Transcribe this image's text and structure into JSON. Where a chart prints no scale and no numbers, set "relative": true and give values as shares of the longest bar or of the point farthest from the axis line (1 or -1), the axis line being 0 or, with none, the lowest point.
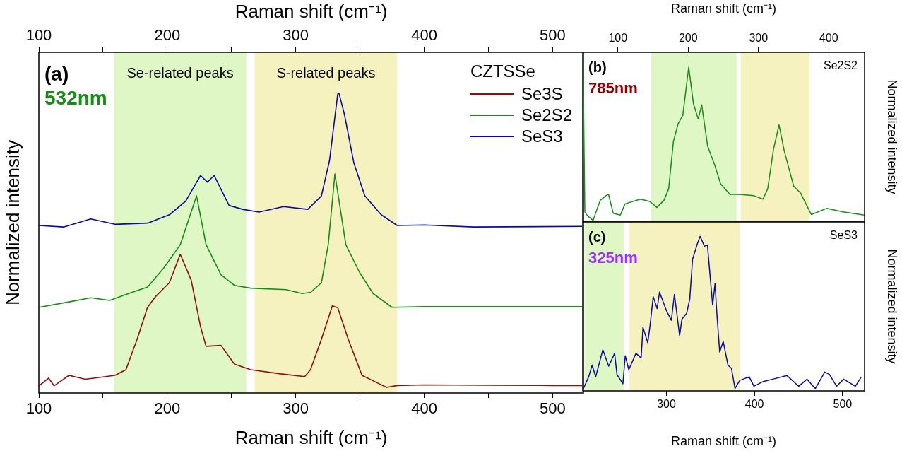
{
  "chart_data": [
    {
      "type": "line",
      "relative": true,
      "xlabel": "Raman shift (cm⁻¹)",
      "x2label": "Raman shift (cm⁻¹)",
      "ylabel": "Normalized intensity",
      "xlim": [
        100,
        524
      ],
      "xticks": [
        100,
        {
          "value": 150,
          "label": null
        },
        200,
        {
          "value": 250,
          "label": null
        },
        300,
        {
          "value": 350,
          "label": null
        },
        400,
        {
          "value": 450,
          "label": null
        },
        500
      ],
      "x2lim": [
        100,
        524
      ],
      "x2ticks": [
        100,
        {
          "value": 150,
          "label": null
        },
        200,
        {
          "value": 250,
          "label": null
        },
        300,
        {
          "value": 350,
          "label": null
        },
        400,
        {
          "value": 450,
          "label": null
        },
        500
      ],
      "grid": false,
      "legend": "top right",
      "legend_title": "CZTSSe",
      "annotations": [
        "(a)",
        "532nm"
      ],
      "bands": [
        {
          "axis": "x",
          "from": 158.5,
          "to": 261.5,
          "label": "Se-related peaks",
          "color": "#dff7c4"
        },
        {
          "axis": "x",
          "from": 268,
          "to": 379,
          "label": "S-related peaks",
          "color": "#f6f2c0"
        }
      ],
      "series": [
        {
          "name": "Se3S",
          "color": "#8b1010",
          "x": [
            100.2,
            107.6,
            111.8,
            123.5,
            136.2,
            159.3,
            167.8,
            176.3,
            184.6,
            191.1,
            201.6,
            210.1,
            218.6,
            225.8,
            230.2,
            241.8,
            252.2,
            264.8,
            288.3,
            307,
            311.5,
            319.8,
            328.5,
            332.7,
            341.1,
            351.6,
            360.2,
            370.7,
            379.1,
            400.3,
            450,
            500,
            523
          ],
          "values": [
            0.024,
            0.05,
            0.024,
            0.059,
            0.046,
            0.059,
            0.078,
            0.177,
            0.286,
            0.323,
            0.368,
            0.463,
            0.377,
            0.223,
            0.156,
            0.159,
            0.097,
            0.078,
            0.064,
            0.055,
            0.078,
            0.177,
            0.291,
            0.285,
            0.177,
            0.059,
            0.041,
            0.019,
            0.025,
            0.027,
            0.026,
            0.025,
            0.025
          ]
        },
        {
          "name": "Se2S2",
          "color": "#1a8a1a",
          "x": [
            100.2,
            123.5,
            140.4,
            155.2,
            169.9,
            184.7,
            197.4,
            210.1,
            222.8,
            230.2,
            241.8,
            252.4,
            264.8,
            292.5,
            305.2,
            311.5,
            320,
            325.3,
            330.5,
            339,
            349.5,
            360.2,
            375,
            400,
            450,
            500,
            523
          ],
          "values": [
            0.286,
            0.304,
            0.318,
            0.309,
            0.332,
            0.354,
            0.418,
            0.495,
            0.658,
            0.495,
            0.395,
            0.359,
            0.35,
            0.345,
            0.332,
            0.336,
            0.368,
            0.495,
            0.731,
            0.495,
            0.404,
            0.332,
            0.286,
            0.288,
            0.288,
            0.288,
            0.288
          ]
        },
        {
          "name": "SeS3",
          "color": "#0a0aa0",
          "x": [
            100.2,
            119.2,
            140.4,
            159.3,
            184.7,
            201.6,
            214.3,
            225.9,
            231.2,
            236.5,
            248.1,
            258.7,
            271.4,
            290.4,
            309.4,
            320,
            326.3,
            332.7,
            333.7,
            337.9,
            345.3,
            353.8,
            366.5,
            379.1,
            400,
            438.4,
            523
          ],
          "values": [
            0.559,
            0.554,
            0.581,
            0.563,
            0.567,
            0.595,
            0.64,
            0.726,
            0.704,
            0.726,
            0.626,
            0.613,
            0.604,
            0.622,
            0.613,
            0.658,
            0.776,
            0.998,
            1.0,
            0.93,
            0.767,
            0.658,
            0.595,
            0.559,
            0.561,
            0.554,
            0.556
          ]
        }
      ]
    },
    {
      "type": "line",
      "relative": true,
      "xlabel": "Raman shift (cm⁻¹)",
      "ylabel": "Normalized intensity",
      "xlim": [
        50,
        451
      ],
      "xticks": [
        100,
        200,
        300,
        400
      ],
      "grid": false,
      "annotations": [
        "(b)",
        "785nm",
        "Se2S2"
      ],
      "bands": [
        {
          "axis": "x",
          "from": 147.6,
          "to": 268.9,
          "label": null,
          "color": "#dff7c4"
        },
        {
          "axis": "x",
          "from": 274.9,
          "to": 372.6,
          "label": null,
          "color": "#f6f2c0"
        }
      ],
      "series": [
        {
          "color": "#1a8a1a",
          "x": [
            50.3,
            53,
            56.4,
            64.8,
            68.2,
            74.9,
            83.3,
            86.7,
            93.4,
            103.5,
            110.2,
            132,
            145.4,
            155.5,
            165.6,
            172.3,
            179,
            185.7,
            192.4,
            200.8,
            207.5,
            214.3,
            219.3,
            227.7,
            237.7,
            246.1,
            259.5,
            273,
            293.1,
            306.5,
            313.2,
            321.6,
            329.3,
            336.7,
            350.1,
            360.1,
            375.2,
            397,
            420.5,
            450.7
          ],
          "values": [
            1.0,
            0.055,
            0.034,
            0.005,
            0.047,
            0.124,
            0.152,
            0.159,
            0.047,
            0.037,
            0.103,
            0.131,
            0.117,
            0.082,
            0.124,
            0.193,
            0.472,
            0.577,
            0.627,
            0.912,
            0.696,
            0.606,
            0.689,
            0.445,
            0.334,
            0.222,
            0.159,
            0.159,
            0.152,
            0.131,
            0.193,
            0.43,
            0.57,
            0.417,
            0.208,
            0.166,
            0.04,
            0.076,
            0.055,
            0.037
          ]
        }
      ]
    },
    {
      "type": "line",
      "relative": true,
      "xlabel": "Raman shift (cm⁻¹)",
      "ylabel": "Normalized intensity",
      "xlim": [
        205,
        525
      ],
      "xticks": [
        300,
        400,
        500
      ],
      "grid": false,
      "annotations": [
        "(c)",
        "325nm",
        "SeS3"
      ],
      "bands": [
        {
          "axis": "x",
          "from": 207,
          "to": 251.6,
          "label": null,
          "color": "#dff7c4"
        },
        {
          "axis": "x",
          "from": 257.8,
          "to": 383.3,
          "label": null,
          "color": "#f6f2c0"
        }
      ],
      "series": [
        {
          "color": "#0a0aa0",
          "x": [
            205.8,
            211.7,
            215.7,
            219.7,
            227.8,
            234.5,
            241.2,
            243.9,
            250.6,
            253.3,
            257.3,
            265.4,
            271.3,
            273.4,
            278.8,
            281.5,
            285,
            289.5,
            292.2,
            300.2,
            305.6,
            309.1,
            315,
            317.6,
            323,
            326.5,
            329.7,
            335.1,
            338.3,
            343.1,
            346.6,
            349.8,
            352.5,
            355.2,
            357.1,
            360.5,
            364.5,
            369.9,
            373.9,
            377.9,
            383.3,
            394,
            399.4,
            410.1,
            420.8,
            436.9,
            450.3,
            459.7,
            469.1,
            479.8,
            485.1,
            493.2,
            501.2,
            514.6,
            521.3
          ],
          "values": [
            0.015,
            0.091,
            0.167,
            0.091,
            0.266,
            0.16,
            0.243,
            0.106,
            0.046,
            0.228,
            0.137,
            0.243,
            0.213,
            0.411,
            0.312,
            0.426,
            0.609,
            0.533,
            0.639,
            0.517,
            0.457,
            0.624,
            0.358,
            0.464,
            0.502,
            0.594,
            0.852,
            0.951,
            1.0,
            0.936,
            0.944,
            0.731,
            0.556,
            0.693,
            0.517,
            0.251,
            0.32,
            0.167,
            0.145,
            0.015,
            0.068,
            0.091,
            0.03,
            0.061,
            0.076,
            0.099,
            0.03,
            0.076,
            0.015,
            0.122,
            0.107,
            0.03,
            0.076,
            0.03,
            0.091
          ]
        }
      ]
    }
  ]
}
